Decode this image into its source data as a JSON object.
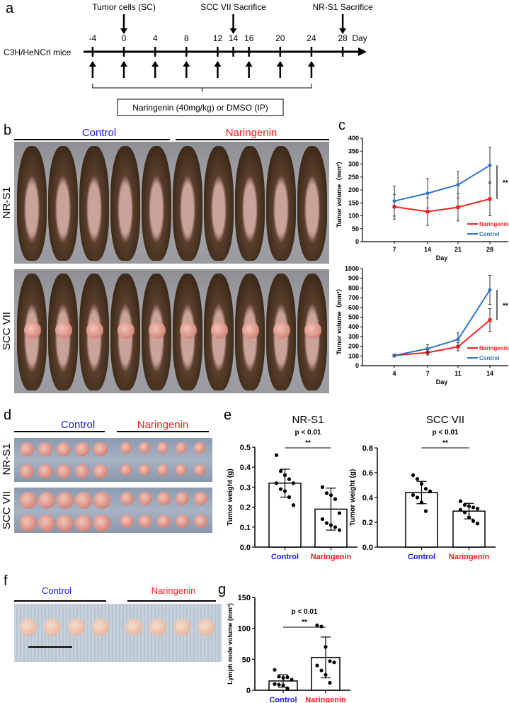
{
  "panel_letters": {
    "a": "a",
    "b": "b",
    "c": "c",
    "d": "d",
    "e": "e",
    "f": "f",
    "g": "g"
  },
  "colors": {
    "control": "#1a1aff",
    "naringenin": "#ff1a1a",
    "line_control": "#2e75c6",
    "line_naringenin": "#ff2020"
  },
  "timeline": {
    "mouse_strain": "C3H/HeNCrl mice",
    "events": [
      {
        "label": "Tumor cells (SC)",
        "day": 0
      },
      {
        "label": "SCC VII Sacrifice",
        "day": 14
      },
      {
        "label": "NR-S1 Sacrifice",
        "day": 28
      }
    ],
    "tick_days": [
      "-4",
      "0",
      "4",
      "8",
      "12",
      "14",
      "16",
      "20",
      "24",
      "28"
    ],
    "axis_unit": "Day",
    "injection_days": [
      -4,
      0,
      4,
      8,
      12,
      16,
      20,
      24
    ],
    "treatment_box": "Naringenin (40mg/kg) or DMSO (IP)"
  },
  "group_labels": {
    "control": "Control",
    "naringenin": "Naringenin"
  },
  "row_labels": {
    "nrs1": "NR-S1",
    "sccvii": "SCC VII"
  },
  "chart_data": [
    {
      "id": "c-nrs1",
      "type": "line",
      "row_label": "NR-S1",
      "xlabel": "Day",
      "ylabel": "Tumor volume（mm³）",
      "x": [
        7,
        14,
        21,
        28
      ],
      "x_ticks": [
        "7",
        "14",
        "21",
        "28"
      ],
      "ylim": [
        0,
        400
      ],
      "y_ticks": [
        "0",
        "50",
        "100",
        "150",
        "200",
        "250",
        "300",
        "350",
        "400"
      ],
      "series": [
        {
          "name": "Naringenin",
          "values": [
            135,
            116,
            133,
            165
          ],
          "errors": [
            48,
            53,
            53,
            65
          ]
        },
        {
          "name": "Control",
          "values": [
            157,
            187,
            220,
            295
          ],
          "errors": [
            58,
            57,
            51,
            70
          ]
        }
      ],
      "legend": "bottom-right",
      "annotation": "**"
    },
    {
      "id": "c-sccvii",
      "type": "line",
      "row_label": "SCC VII",
      "xlabel": "Day",
      "ylabel": "Tumor volume（mm³）",
      "x": [
        4,
        7,
        11,
        14
      ],
      "x_ticks": [
        "4",
        "7",
        "11",
        "14"
      ],
      "ylim": [
        0,
        1000
      ],
      "y_ticks": [
        "0",
        "100",
        "200",
        "300",
        "400",
        "500",
        "600",
        "700",
        "800",
        "900",
        "1000"
      ],
      "series": [
        {
          "name": "Naringenin",
          "values": [
            105,
            135,
            195,
            470
          ],
          "errors": [
            15,
            25,
            42,
            118
          ]
        },
        {
          "name": "Control",
          "values": [
            105,
            175,
            270,
            780
          ],
          "errors": [
            15,
            40,
            68,
            150
          ]
        }
      ],
      "legend": "bottom-right",
      "annotation": "**"
    },
    {
      "id": "e-nrs1",
      "type": "bar",
      "title": "NR-S1",
      "pvalue": "p < 0.01",
      "annotation": "**",
      "ylabel": "Tumor weight (g)",
      "categories": [
        "Control",
        "Naringenin"
      ],
      "ylim": [
        0,
        0.5
      ],
      "y_ticks": [
        "0.0",
        "0.1",
        "0.2",
        "0.3",
        "0.4",
        "0.5"
      ],
      "values": [
        0.32,
        0.19
      ],
      "errors": [
        0.07,
        0.105
      ],
      "points": [
        [
          0.46,
          0.38,
          0.36,
          0.34,
          0.32,
          0.32,
          0.29,
          0.28,
          0.25,
          0.21
        ],
        [
          0.3,
          0.27,
          0.26,
          0.24,
          0.17,
          0.14,
          0.12,
          0.11,
          0.1,
          0.085
        ]
      ]
    },
    {
      "id": "e-sccvii",
      "type": "bar",
      "title": "SCC VII",
      "pvalue": "p < 0.01",
      "annotation": "**",
      "ylabel": "Tumor weight (g)",
      "categories": [
        "Control",
        "Naringenin"
      ],
      "ylim": [
        0,
        0.8
      ],
      "y_ticks": [
        "0.0",
        "0.2",
        "0.4",
        "0.6",
        "0.8"
      ],
      "values": [
        0.44,
        0.29
      ],
      "errors": [
        0.09,
        0.063
      ],
      "points": [
        [
          0.58,
          0.55,
          0.51,
          0.47,
          0.45,
          0.42,
          0.4,
          0.36,
          0.29
        ],
        [
          0.37,
          0.34,
          0.33,
          0.32,
          0.31,
          0.3,
          0.28,
          0.24,
          0.21,
          0.19
        ]
      ]
    },
    {
      "id": "g",
      "type": "bar",
      "pvalue": "p < 0.01",
      "annotation": "**",
      "ylabel": "Lymph node volume (mm³)",
      "categories": [
        "Control",
        "Naringenin"
      ],
      "ylim": [
        0,
        150
      ],
      "y_ticks": [
        "0",
        "50",
        "100",
        "150"
      ],
      "values": [
        15,
        53
      ],
      "errors": [
        10,
        33
      ],
      "points": [
        [
          33,
          22,
          20,
          21,
          17,
          10,
          9,
          8,
          3
        ],
        [
          105,
          103,
          70,
          47,
          45,
          40,
          32,
          25,
          12
        ]
      ]
    }
  ]
}
